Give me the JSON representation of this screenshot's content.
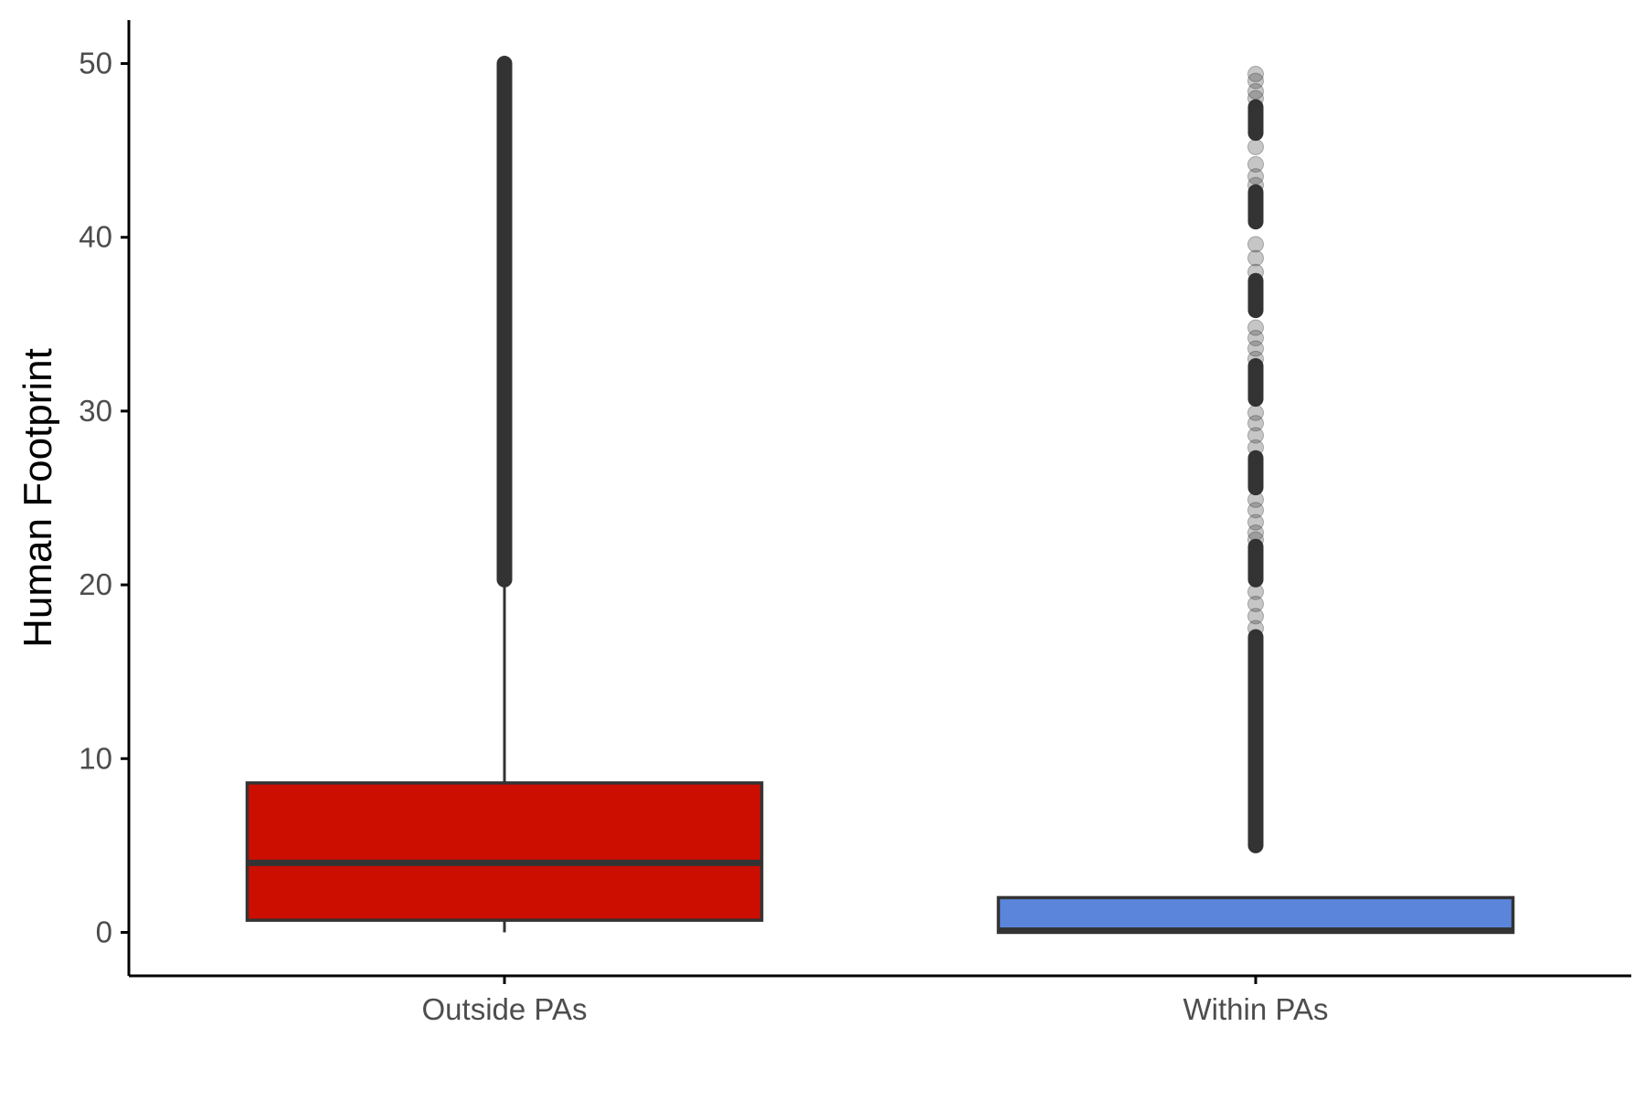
{
  "chart_data": {
    "type": "box",
    "title": "",
    "xlabel": "",
    "ylabel": "Human Footprint",
    "ylim": [
      -2.5,
      52.5
    ],
    "yticks": [
      0,
      10,
      20,
      30,
      40,
      50
    ],
    "grid": false,
    "legend": "none",
    "categories": [
      "Outside PAs",
      "Within PAs"
    ],
    "boxes": [
      {
        "category": "Outside PAs",
        "color": "#CC0E00",
        "whisker_low": 0,
        "q1": 0.7,
        "median": 4.0,
        "q3": 8.6,
        "whisker_high": 20.3,
        "outliers": {
          "dense_ranges": [
            [
              20.3,
              50.0
            ]
          ],
          "points": []
        }
      },
      {
        "category": "Within PAs",
        "color": "#5B85DB",
        "whisker_low": 0,
        "q1": 0,
        "median": 0.1,
        "q3": 2.0,
        "whisker_high": 2.0,
        "outliers": {
          "dense_ranges": [
            [
              5.0,
              17.0
            ],
            [
              20.3,
              22.2
            ],
            [
              25.6,
              27.3
            ],
            [
              30.7,
              32.6
            ],
            [
              35.8,
              37.5
            ],
            [
              40.9,
              42.6
            ],
            [
              46.0,
              47.5
            ]
          ],
          "points": [
            17.5,
            18.2,
            18.9,
            19.6,
            22.6,
            23.0,
            23.6,
            24.3,
            24.9,
            27.9,
            28.6,
            29.3,
            29.9,
            33.0,
            33.6,
            34.2,
            34.8,
            38.0,
            38.8,
            39.6,
            43.0,
            43.5,
            44.2,
            45.2,
            48.0,
            48.4,
            49.0,
            49.4
          ]
        }
      }
    ]
  },
  "colors": {
    "outline": "#333333",
    "axis": "#000000",
    "point": "#333333"
  }
}
